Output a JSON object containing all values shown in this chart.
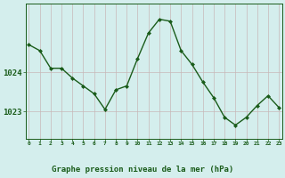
{
  "x": [
    0,
    1,
    2,
    3,
    4,
    5,
    6,
    7,
    8,
    9,
    10,
    11,
    12,
    13,
    14,
    15,
    16,
    17,
    18,
    19,
    20,
    21,
    22,
    23
  ],
  "y": [
    1024.7,
    1024.55,
    1024.1,
    1024.1,
    1023.85,
    1023.65,
    1023.45,
    1023.05,
    1023.55,
    1023.65,
    1024.35,
    1025.0,
    1025.35,
    1025.3,
    1024.55,
    1024.2,
    1023.75,
    1023.35,
    1022.85,
    1022.65,
    1022.85,
    1023.15,
    1023.4,
    1023.1
  ],
  "line_color": "#1a5c1a",
  "marker_color": "#1a5c1a",
  "bg_color": "#d4eeed",
  "grid_color_v": "#c8b8b8",
  "grid_color_h": "#c8b8b8",
  "bottom_bar_color": "#a8d8d0",
  "axis_label_color": "#1a5c1a",
  "tick_color": "#1a5c1a",
  "xlabel": "Graphe pression niveau de la mer (hPa)",
  "ytick_labels": [
    "1023",
    "1024"
  ],
  "ytick_values": [
    1023.0,
    1024.0
  ],
  "ylim": [
    1022.3,
    1025.75
  ],
  "xlim": [
    -0.3,
    23.3
  ],
  "xtick_values": [
    0,
    1,
    2,
    3,
    4,
    5,
    6,
    7,
    8,
    9,
    10,
    11,
    12,
    13,
    14,
    15,
    16,
    17,
    18,
    19,
    20,
    21,
    22,
    23
  ]
}
